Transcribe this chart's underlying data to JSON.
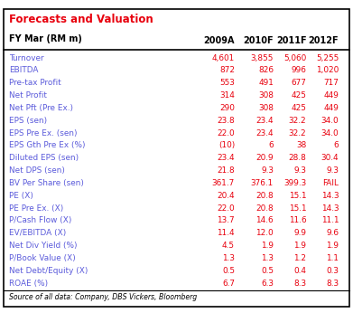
{
  "title": "Forecasts and Valuation",
  "subtitle": "FY Mar (RM m)",
  "columns": [
    "2009A",
    "2010F",
    "2011F",
    "2012F"
  ],
  "rows": [
    [
      "Turnover",
      "4,601",
      "3,855",
      "5,060",
      "5,255"
    ],
    [
      "EBITDA",
      "872",
      "826",
      "996",
      "1,020"
    ],
    [
      "Pre-tax Profit",
      "553",
      "491",
      "677",
      "717"
    ],
    [
      "Net Profit",
      "314",
      "308",
      "425",
      "449"
    ],
    [
      "Net Pft (Pre Ex.)",
      "290",
      "308",
      "425",
      "449"
    ],
    [
      "EPS (sen)",
      "23.8",
      "23.4",
      "32.2",
      "34.0"
    ],
    [
      "EPS Pre Ex. (sen)",
      "22.0",
      "23.4",
      "32.2",
      "34.0"
    ],
    [
      "EPS Gth Pre Ex (%)",
      "(10)",
      "6",
      "38",
      "6"
    ],
    [
      "Diluted EPS (sen)",
      "23.4",
      "20.9",
      "28.8",
      "30.4"
    ],
    [
      "Net DPS (sen)",
      "21.8",
      "9.3",
      "9.3",
      "9.3"
    ],
    [
      "BV Per Share (sen)",
      "361.7",
      "376.1",
      "399.3",
      "FAIL"
    ],
    [
      "PE (X)",
      "20.4",
      "20.8",
      "15.1",
      "14.3"
    ],
    [
      "PE Pre Ex. (X)",
      "22.0",
      "20.8",
      "15.1",
      "14.3"
    ],
    [
      "P/Cash Flow (X)",
      "13.7",
      "14.6",
      "11.6",
      "11.1"
    ],
    [
      "EV/EBITDA (X)",
      "11.4",
      "12.0",
      "9.9",
      "9.6"
    ],
    [
      "Net Div Yield (%)",
      "4.5",
      "1.9",
      "1.9",
      "1.9"
    ],
    [
      "P/Book Value (X)",
      "1.3",
      "1.3",
      "1.2",
      "1.1"
    ],
    [
      "Net Debt/Equity (X)",
      "0.5",
      "0.5",
      "0.4",
      "0.3"
    ],
    [
      "ROAE (%)",
      "6.7",
      "6.3",
      "8.3",
      "8.3"
    ]
  ],
  "source": "Source of all data: Company, DBS Vickers, Bloomberg",
  "title_color": "#e8000d",
  "subtitle_color": "#000000",
  "header_color": "#000000",
  "label_color": "#5b5bdb",
  "value_color": "#e8000d",
  "bg_color": "#ffffff",
  "border_color": "#000000"
}
